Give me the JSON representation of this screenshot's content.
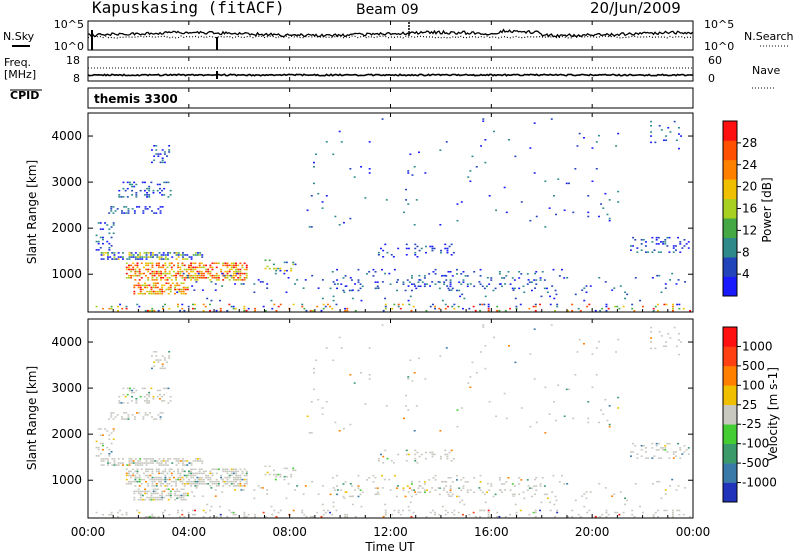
{
  "header": {
    "station": "Kapuskasing (fitACF)",
    "beam": "Beam 09",
    "date": "20/Jun/2009"
  },
  "chart_data": [
    {
      "type": "line",
      "panel": "noise",
      "left_label": "N.Sky",
      "right_label": "N.Search",
      "left_ticks": [
        "10^5",
        "10^0"
      ],
      "right_ticks": [
        "10^5",
        "10^0"
      ],
      "x_range_hours": [
        0,
        24
      ]
    },
    {
      "type": "line",
      "panel": "frequency",
      "left_label_top": "Freq.",
      "left_label_bottom": "[MHz]",
      "right_label": "Nave",
      "left_ticks": [
        "18",
        "8"
      ],
      "right_ticks": [
        "60",
        "0"
      ],
      "x_range_hours": [
        0,
        24
      ]
    },
    {
      "type": "table",
      "panel": "cpid",
      "label": "CPID",
      "program": "themis 3300"
    },
    {
      "type": "heatmap",
      "panel": "power",
      "ylabel": "Slant Range [km]",
      "ylim": [
        180,
        4500
      ],
      "yticks": [
        1000,
        2000,
        3000,
        4000
      ],
      "colorbar_label": "Power [dB]",
      "colorbar_ticks": [
        "28",
        "24",
        "20",
        "16",
        "12",
        "8",
        "4"
      ],
      "colors": [
        "#1a1aff",
        "#2244bb",
        "#2e8a8a",
        "#44a844",
        "#a8d020",
        "#f0c000",
        "#ff8000",
        "#ff5000",
        "#ff1010"
      ],
      "x_range_hours": [
        0,
        24
      ]
    },
    {
      "type": "heatmap",
      "panel": "velocity",
      "ylabel": "Slant Range [km]",
      "ylim": [
        180,
        4500
      ],
      "yticks": [
        1000,
        2000,
        3000,
        4000
      ],
      "colorbar_label": "Velocity [m s-1]",
      "colorbar_ticks": [
        "1000",
        "500",
        "100",
        "25",
        "-25",
        "-100",
        "-500",
        "-1000"
      ],
      "colors": [
        "#2233bb",
        "#3a7aa8",
        "#3a9a6a",
        "#44cc33",
        "#c8c8c0",
        "#f0c000",
        "#ff8000",
        "#ff4010",
        "#ff1010"
      ],
      "x_range_hours": [
        0,
        24
      ]
    }
  ],
  "xaxis": {
    "ticks": [
      "00:00",
      "04:00",
      "08:00",
      "12:00",
      "16:00",
      "20:00",
      "00:00"
    ],
    "label": "Time UT"
  }
}
